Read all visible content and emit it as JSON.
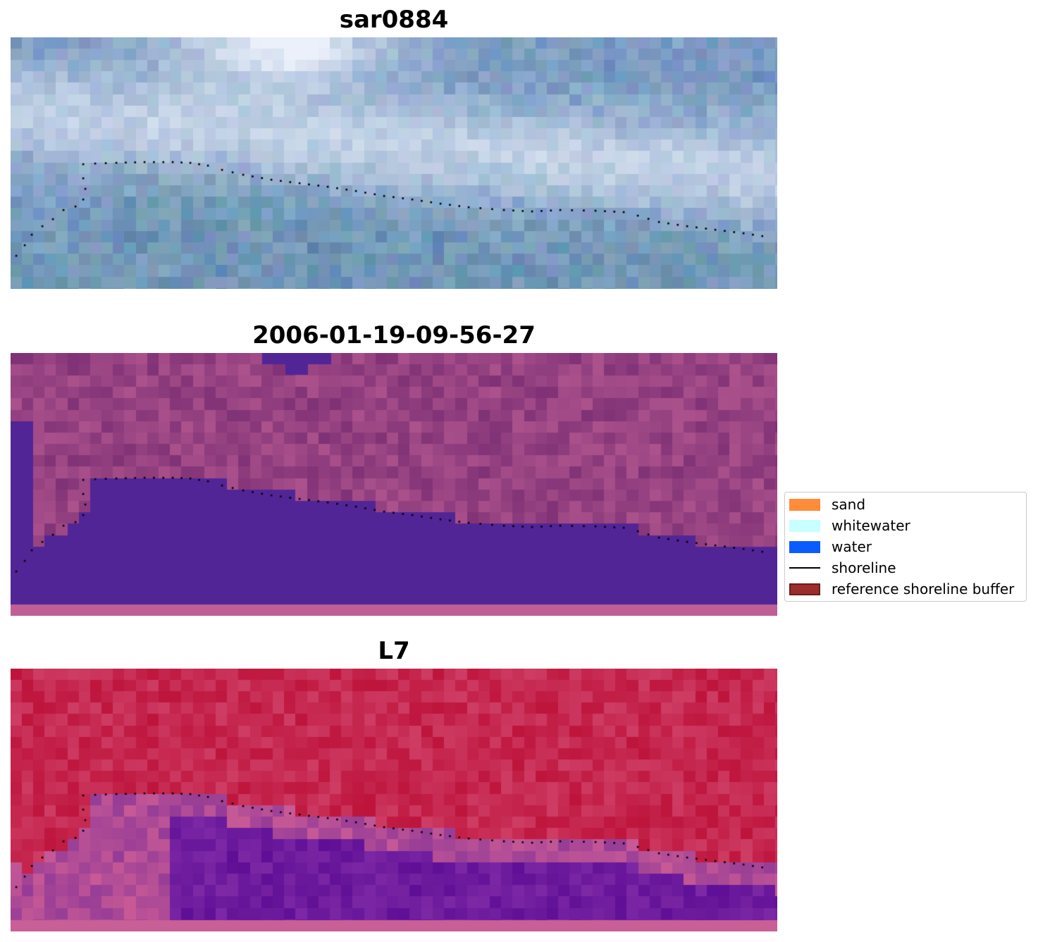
{
  "panels": [
    {
      "title": "sar0884",
      "style": "rgb"
    },
    {
      "title": "2006-01-19-09-56-27",
      "style": "classified"
    },
    {
      "title": "L7",
      "style": "falsecolor"
    }
  ],
  "legend": {
    "items": [
      {
        "label": "sand",
        "color": "#ff8c3a",
        "kind": "patch"
      },
      {
        "label": "whitewater",
        "color": "#c8ffff",
        "kind": "patch"
      },
      {
        "label": "water",
        "color": "#0a5cff",
        "kind": "patch"
      },
      {
        "label": "shoreline",
        "color": "#000000",
        "kind": "line"
      },
      {
        "label": "reference shoreline buffer",
        "color": "#9b2d2d",
        "kind": "patch-edged"
      }
    ]
  },
  "colors": {
    "sky_rgb_base": "#6f92c0",
    "classified_land": "#a94f92",
    "classified_water": "#522597",
    "falsecolor_land": "#c42755",
    "falsecolor_water": "#6a1397",
    "shoreline_dots": "#000000"
  }
}
